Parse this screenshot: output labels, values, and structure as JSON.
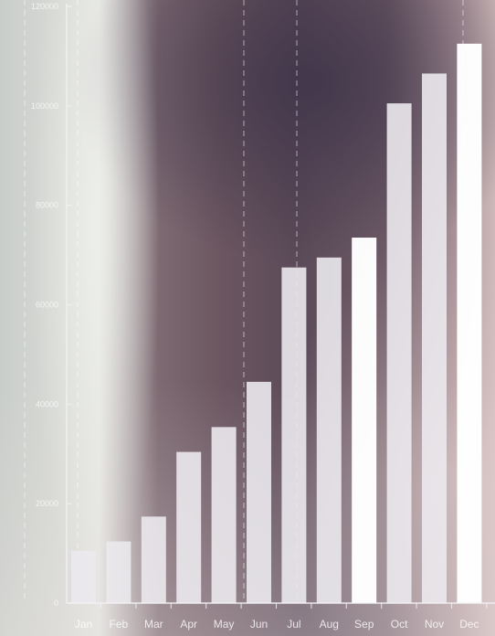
{
  "chart_data": {
    "type": "bar",
    "categories": [
      "Jan",
      "Feb",
      "Mar",
      "Apr",
      "May",
      "Jun",
      "Jul",
      "Aug",
      "Sep",
      "Oct",
      "Nov",
      "Dec"
    ],
    "values": [
      10500,
      12400,
      17400,
      30400,
      35400,
      44500,
      67500,
      69500,
      73500,
      100500,
      106500,
      112500
    ],
    "ylim": [
      0,
      120000
    ],
    "yticks": [
      0,
      20000,
      40000,
      60000,
      80000,
      100000,
      120000
    ],
    "ytick_labels": [
      "0",
      "20000",
      "40000",
      "60000",
      "80000",
      "100000",
      "120000"
    ],
    "grid": "dashed vertical lines",
    "colors": {
      "bar": "#ebe9ed",
      "bar_bright": "#ffffff",
      "axis": "#f4f2f4"
    }
  }
}
